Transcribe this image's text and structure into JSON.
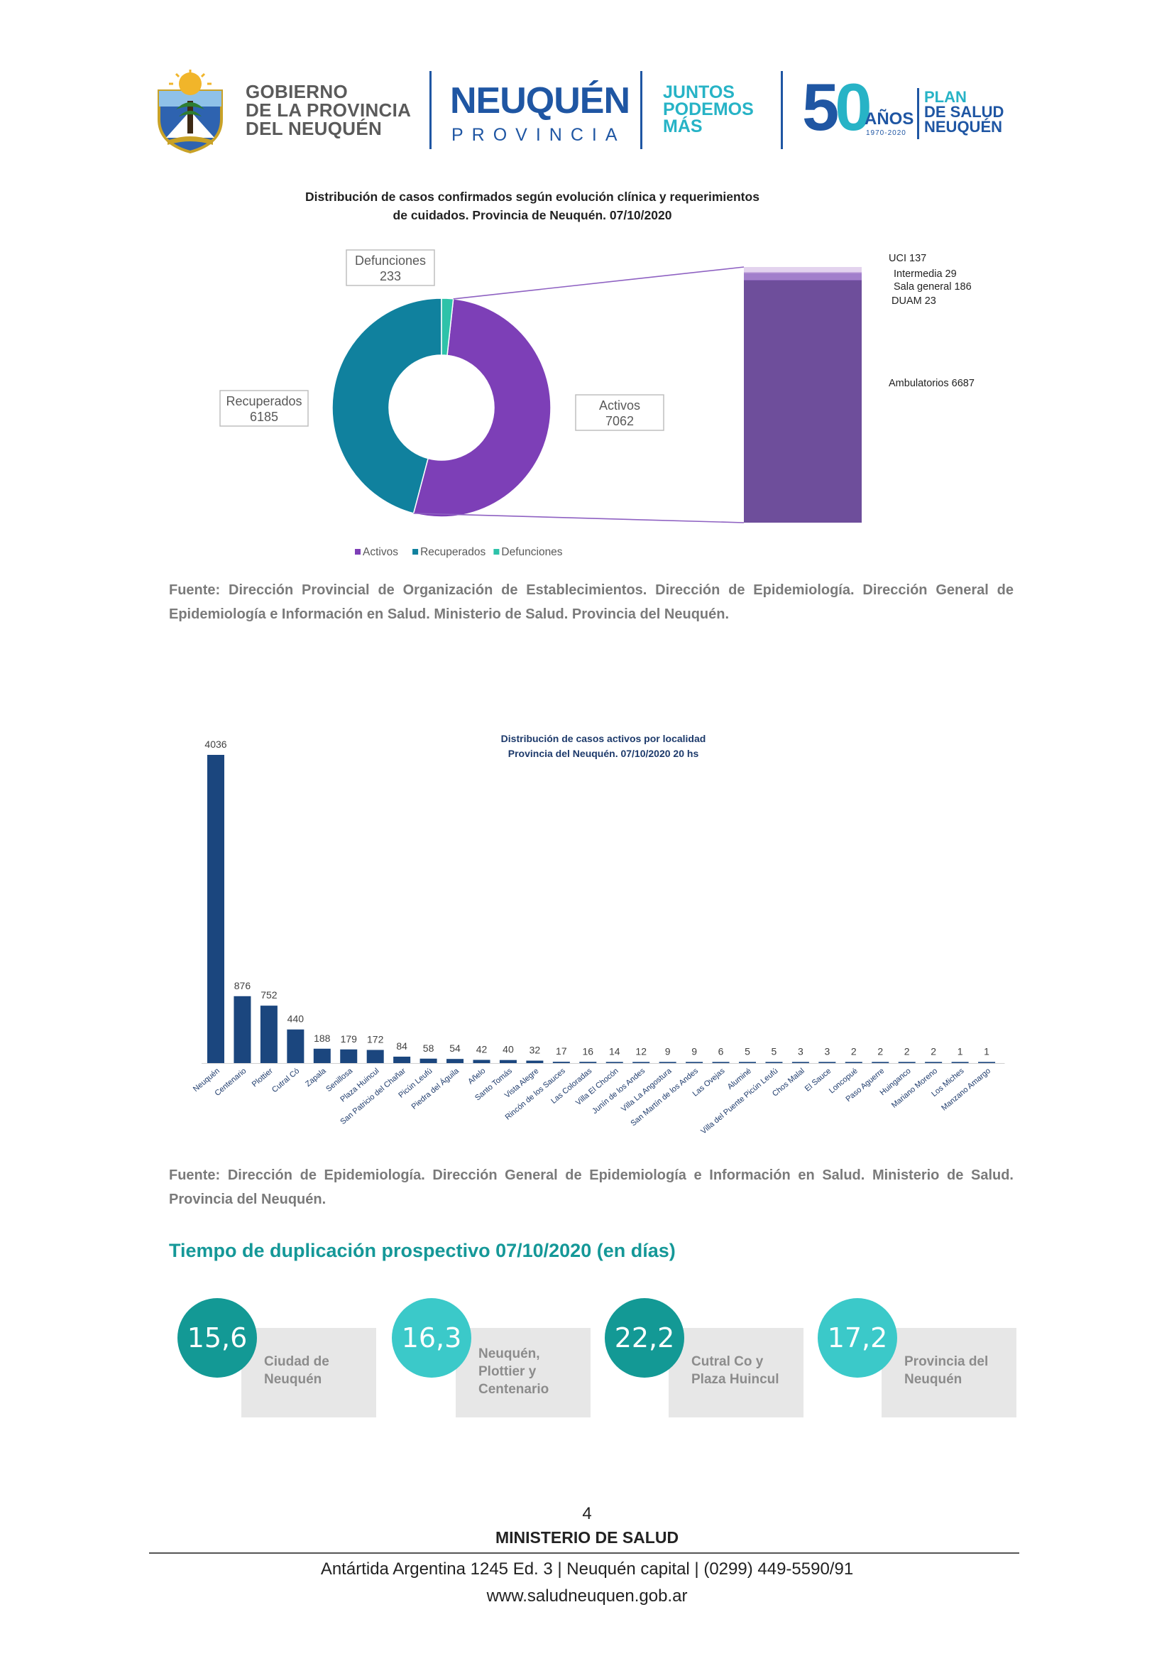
{
  "header": {
    "gov_line1": "GOBIERNO",
    "gov_line2": "DE LA PROVINCIA",
    "gov_line3": "DEL NEUQUÉN",
    "province_name": "NEUQUÉN",
    "province_sub": "PROVINCIA",
    "slogan_line1": "JUNTOS",
    "slogan_line2": "PODEMOS",
    "slogan_line3": "MÁS",
    "anniversary_five": "5",
    "anniversary_zero": "0",
    "anniversary_word": "AÑOS",
    "anniversary_years": "1970-2020",
    "plan_line1": "PLAN",
    "plan_line2": "DE SALUD",
    "plan_line3": "NEUQUÉN"
  },
  "chart1": {
    "title_line1": "Distribución de casos confirmados según evolución clínica y requerimientos",
    "title_line2": "de cuidados. Provincia de Neuquén. 07/10/2020",
    "source": "Fuente: Dirección Provincial de Organización de Establecimientos. Dirección de Epidemiología. Dirección General de Epidemiología e Información en Salud. Ministerio de Salud. Provincia del Neuquén."
  },
  "chart2": {
    "title_line1": "Distribución de casos activos por localidad",
    "title_line2": "Provincia del Neuquén.  07/10/2020  20  hs",
    "source": "Fuente: Dirección de Epidemiología. Dirección General de Epidemiología e Información en Salud. Ministerio de Salud. Provincia del Neuquén."
  },
  "chart_data": [
    {
      "type": "pie",
      "title": "Distribución de casos confirmados según evolución clínica y requerimientos de cuidados. Provincia de Neuquén. 07/10/2020",
      "categories": [
        "Activos",
        "Recuperados",
        "Defunciones"
      ],
      "values": [
        7062,
        6185,
        233
      ],
      "colors": [
        "#7d3fb7",
        "#10819e",
        "#2ec2a9"
      ],
      "legend": "bottom",
      "breakdown_of": "Activos",
      "breakdown": [
        {
          "label": "UCI",
          "value": 137,
          "color": "#e3d3ee"
        },
        {
          "label": "Intermedia",
          "value": 29,
          "color": "#c9aee0"
        },
        {
          "label": "Sala general",
          "value": 186,
          "color": "#a27fcb"
        },
        {
          "label": "DUAM",
          "value": 23,
          "color": "#8a64bb"
        },
        {
          "label": "Ambulatorios",
          "value": 6687,
          "color": "#6e4e9b"
        }
      ]
    },
    {
      "type": "bar",
      "title": "Distribución de casos activos por localidad Provincia del Neuquén.  07/10/2020  20  hs",
      "categories": [
        "Neuquén",
        "Centenario",
        "Plottier",
        "Cutral Có",
        "Zapala",
        "Senillosa",
        "Plaza Huincul",
        "San Patricio del Chañar",
        "Picún Leufú",
        "Piedra del Águila",
        "Añelo",
        "Santo Tomás",
        "Vista Alegre",
        "Rincón de los Sauces",
        "Las Coloradas",
        "Villa El Chocón",
        "Junín de los Andes",
        "Villa La Angostura",
        "San Martín de los Andes",
        "Las Ovejas",
        "Aluminé",
        "Villa del Puente Picún Leufú",
        "Chos Malal",
        "El Sauce",
        "Loncopué",
        "Paso Aguerre",
        "Huinganco",
        "Mariano Moreno",
        "Los Miches",
        "Manzano Amargo"
      ],
      "values": [
        4036,
        876,
        752,
        440,
        188,
        179,
        172,
        84,
        58,
        54,
        42,
        40,
        32,
        17,
        16,
        14,
        12,
        9,
        9,
        6,
        5,
        5,
        3,
        3,
        2,
        2,
        2,
        2,
        1,
        1
      ],
      "xlabel": "",
      "ylabel": "",
      "ylim": [
        0,
        4036
      ],
      "bar_color": "#1b467e",
      "grid": false
    }
  ],
  "duplication": {
    "title": "Tiempo de duplicación prospectivo 07/10/2020 (en días)",
    "items": [
      {
        "value": "15,6",
        "label_line1": "Ciudad de",
        "label_line2": "Neuquén",
        "label_line3": "",
        "color": "#139995"
      },
      {
        "value": "16,3",
        "label_line1": "Neuquén,",
        "label_line2": "Plottier y",
        "label_line3": "Centenario",
        "color": "#3bc9c9"
      },
      {
        "value": "22,2",
        "label_line1": "Cutral Co y",
        "label_line2": "Plaza Huincul",
        "label_line3": "",
        "color": "#139995"
      },
      {
        "value": "17,2",
        "label_line1": "Provincia del",
        "label_line2": "Neuquén",
        "label_line3": "",
        "color": "#3bc9c9"
      }
    ]
  },
  "footer": {
    "page_number": "4",
    "ministry": "MINISTERIO DE SALUD",
    "address": "Antártida Argentina 1245 Ed. 3 | Neuquén capital | (0299) 449-5590/91",
    "website": "www.saludneuquen.gob.ar"
  }
}
